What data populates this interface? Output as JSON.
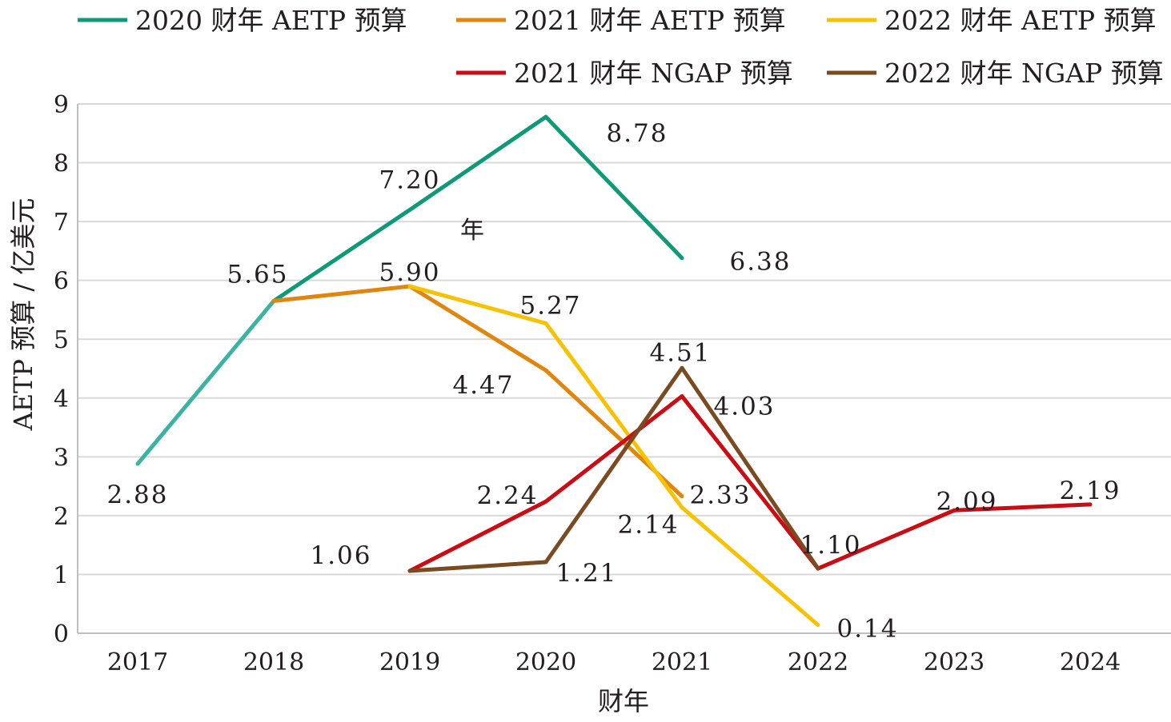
{
  "chart_data": {
    "type": "line",
    "title": "",
    "xlabel": "财年",
    "ylabel": "AETP 预算 / 亿美元",
    "categories": [
      "2017",
      "2018",
      "2019",
      "2020",
      "2021",
      "2022",
      "2023",
      "2024"
    ],
    "ylim": [
      0,
      9
    ],
    "yticks": [
      "0",
      "1",
      "2",
      "3",
      "4",
      "5",
      "6",
      "7",
      "8",
      "9"
    ],
    "grid": true,
    "legend_position": "top",
    "series": [
      {
        "name": "2020 财年 AETP 预算",
        "color": "#0f9a77",
        "start_color": "#3ab3a3",
        "values": [
          2.88,
          5.65,
          7.2,
          8.78,
          6.38,
          null,
          null,
          null
        ],
        "labels": [
          "2.88",
          "5.65",
          "7.20",
          "8.78",
          "6.38",
          null,
          null,
          null
        ]
      },
      {
        "name": "2021 财年 AETP 预算",
        "color": "#e0860f",
        "values": [
          null,
          5.65,
          5.9,
          4.47,
          2.33,
          null,
          null,
          null
        ],
        "labels": [
          null,
          null,
          null,
          "4.47",
          "2.33",
          null,
          null,
          null
        ]
      },
      {
        "name": "2022 财年 AETP 预算",
        "color": "#f7c204",
        "values": [
          null,
          null,
          5.9,
          5.27,
          2.14,
          0.14,
          null,
          null
        ],
        "labels": [
          null,
          null,
          "5.90",
          "5.27",
          "2.14",
          "0.14",
          null,
          null
        ]
      },
      {
        "name": "2021 财年 NGAP 预算",
        "color": "#cc0c14",
        "values": [
          null,
          null,
          1.06,
          2.24,
          4.03,
          1.1,
          2.09,
          2.19
        ],
        "labels": [
          null,
          null,
          "1.06",
          "2.24",
          "4.03",
          "1.10",
          "2.09",
          "2.19"
        ]
      },
      {
        "name": "2022 财年 NGAP 预算",
        "color": "#7a4a21",
        "values": [
          null,
          null,
          1.06,
          1.21,
          4.51,
          1.1,
          null,
          null
        ],
        "labels": [
          null,
          null,
          null,
          "1.21",
          "4.51",
          null,
          null,
          null
        ]
      }
    ],
    "annotations": [
      "年"
    ]
  }
}
